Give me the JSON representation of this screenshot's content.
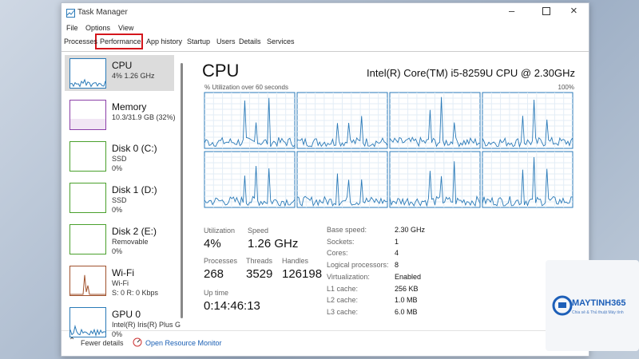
{
  "window": {
    "title": "Task Manager",
    "menu": [
      "File",
      "Options",
      "View"
    ],
    "tabs": [
      "Processes",
      "Performance",
      "App history",
      "Startup",
      "Users",
      "Details",
      "Services"
    ]
  },
  "sidebar": [
    {
      "name": "CPU",
      "lines": [
        "4% 1.26 GHz"
      ]
    },
    {
      "name": "Memory",
      "lines": [
        "10.3/31.9 GB (32%)"
      ]
    },
    {
      "name": "Disk 0 (C:)",
      "lines": [
        "SSD",
        "0%"
      ]
    },
    {
      "name": "Disk 1 (D:)",
      "lines": [
        "SSD",
        "0%"
      ]
    },
    {
      "name": "Disk 2 (E:)",
      "lines": [
        "Removable",
        "0%"
      ]
    },
    {
      "name": "Wi-Fi",
      "lines": [
        "Wi-Fi",
        "S: 0 R: 0 Kbps"
      ]
    },
    {
      "name": "GPU 0",
      "lines": [
        "Intel(R) Iris(R) Plus G",
        "0%"
      ]
    }
  ],
  "main": {
    "title": "CPU",
    "model": "Intel(R) Core(TM) i5-8259U CPU @ 2.30GHz",
    "graph_label": "% Utilization over 60 seconds",
    "graph_max": "100%",
    "stats": [
      {
        "label": "Utilization",
        "value": "4%"
      },
      {
        "label": "Speed",
        "value": "1.26 GHz"
      },
      {
        "label": "Processes",
        "value": "268"
      },
      {
        "label": "Threads",
        "value": "3529"
      },
      {
        "label": "Handles",
        "value": "126198"
      },
      {
        "label": "Up time",
        "value": "0:14:46:13"
      }
    ],
    "details": [
      [
        "Base speed:",
        "2.30 GHz"
      ],
      [
        "Sockets:",
        "1"
      ],
      [
        "Cores:",
        "4"
      ],
      [
        "Logical processors:",
        "8"
      ],
      [
        "Virtualization:",
        "Enabled"
      ],
      [
        "L1 cache:",
        "256 KB"
      ],
      [
        "L2 cache:",
        "1.0 MB"
      ],
      [
        "L3 cache:",
        "6.0 MB"
      ]
    ]
  },
  "footer": {
    "fewer": "Fewer details",
    "monitor": "Open Resource Monitor"
  },
  "watermark": {
    "brand": "MAYTINH365",
    "tagline": "Chia sẻ & Thủ thuật Máy tính"
  }
}
